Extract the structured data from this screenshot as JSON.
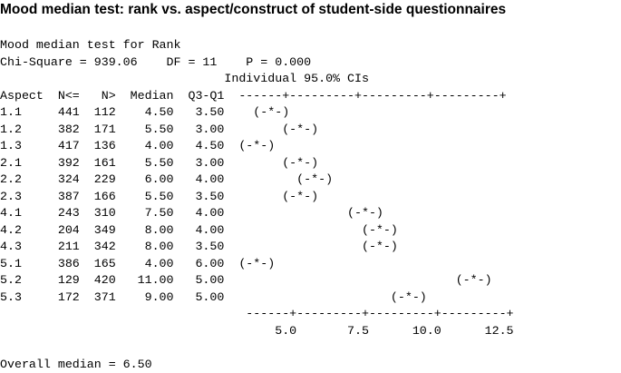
{
  "title": "Mood median test: rank vs. aspect/construct of student-side questionnaires",
  "output": {
    "heading": "Mood median test for Rank",
    "stats": "Chi-Square = 939.06    DF = 11    P = 0.000",
    "ci_header": "                               Individual 95.0% CIs",
    "column_header": "Aspect  N<=   N>  Median  Q3-Q1  ------+---------+---------+---------+",
    "rows": [
      {
        "aspect": "1.1",
        "n_le": 441,
        "n_gt": 112,
        "median": "4.50",
        "iqr": "3.50",
        "ci": "  (-*-)"
      },
      {
        "aspect": "1.2",
        "n_le": 382,
        "n_gt": 171,
        "median": "5.50",
        "iqr": "3.00",
        "ci": "      (-*-)"
      },
      {
        "aspect": "1.3",
        "n_le": 417,
        "n_gt": 136,
        "median": "4.00",
        "iqr": "4.50",
        "ci": "(-*-)"
      },
      {
        "aspect": "2.1",
        "n_le": 392,
        "n_gt": 161,
        "median": "5.50",
        "iqr": "3.00",
        "ci": "      (-*-)"
      },
      {
        "aspect": "2.2",
        "n_le": 324,
        "n_gt": 229,
        "median": "6.00",
        "iqr": "4.00",
        "ci": "        (-*-)"
      },
      {
        "aspect": "2.3",
        "n_le": 387,
        "n_gt": 166,
        "median": "5.50",
        "iqr": "3.50",
        "ci": "      (-*-)"
      },
      {
        "aspect": "4.1",
        "n_le": 243,
        "n_gt": 310,
        "median": "7.50",
        "iqr": "4.00",
        "ci": "               (-*-)"
      },
      {
        "aspect": "4.2",
        "n_le": 204,
        "n_gt": 349,
        "median": "8.00",
        "iqr": "4.00",
        "ci": "                 (-*-)"
      },
      {
        "aspect": "4.3",
        "n_le": 211,
        "n_gt": 342,
        "median": "8.00",
        "iqr": "3.50",
        "ci": "                 (-*-)"
      },
      {
        "aspect": "5.1",
        "n_le": 386,
        "n_gt": 165,
        "median": "4.00",
        "iqr": "6.00",
        "ci": "(-*-)"
      },
      {
        "aspect": "5.2",
        "n_le": 129,
        "n_gt": 420,
        "median": "11.00",
        "iqr": "5.00",
        "ci": "                              (-*-)"
      },
      {
        "aspect": "5.3",
        "n_le": 172,
        "n_gt": 371,
        "median": "9.00",
        "iqr": "5.00",
        "ci": "                     (-*-)"
      }
    ],
    "axis_line": "                                  ------+---------+---------+---------+",
    "axis_labels": "                                      5.0       7.5      10.0      12.5",
    "overall_median": "Overall median = 6.50"
  }
}
